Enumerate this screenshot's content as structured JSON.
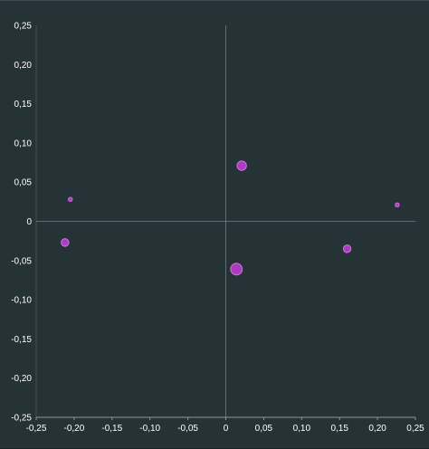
{
  "chart_data": {
    "type": "scatter",
    "title": "",
    "xlabel": "",
    "ylabel": "",
    "xlim": [
      -0.25,
      0.25
    ],
    "ylim": [
      -0.25,
      0.25
    ],
    "x_ticks": [
      -0.25,
      -0.2,
      -0.15,
      -0.1,
      -0.05,
      0,
      0.05,
      0.1,
      0.15,
      0.2,
      0.25
    ],
    "y_ticks": [
      -0.25,
      -0.2,
      -0.15,
      -0.1,
      -0.05,
      0,
      0.05,
      0.1,
      0.15,
      0.2,
      0.25
    ],
    "x_tick_labels": [
      "-0,25",
      "-0,20",
      "-0,15",
      "-0,10",
      "-0,05",
      "0",
      "0,05",
      "0,10",
      "0,15",
      "0,20",
      "0,25"
    ],
    "y_tick_labels": [
      "-0,25",
      "-0,20",
      "-0,15",
      "-0,10",
      "-0,05",
      "0",
      "0,05",
      "0,10",
      "0,15",
      "0,20",
      "0,25"
    ],
    "grid": false,
    "zero_lines": true,
    "point_color": "#c23fd6",
    "series": [
      {
        "points": [
          {
            "x": -0.205,
            "y": 0.028,
            "size": 1
          },
          {
            "x": -0.212,
            "y": -0.027,
            "size": 2
          },
          {
            "x": 0.021,
            "y": 0.071,
            "size": 3
          },
          {
            "x": 0.014,
            "y": -0.061,
            "size": 4
          },
          {
            "x": 0.16,
            "y": -0.035,
            "size": 2
          },
          {
            "x": 0.226,
            "y": 0.021,
            "size": 1
          }
        ]
      }
    ]
  }
}
